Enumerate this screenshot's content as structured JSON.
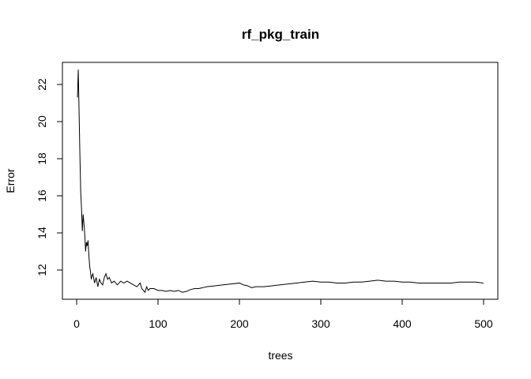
{
  "chart_data": {
    "type": "line",
    "title": "rf_pkg_train",
    "xlabel": "trees",
    "ylabel": "Error",
    "xlim": [
      0,
      500
    ],
    "ylim": [
      10.8,
      22.8
    ],
    "x_ticks": [
      0,
      100,
      200,
      300,
      400,
      500
    ],
    "y_ticks": [
      12,
      14,
      16,
      18,
      20,
      22
    ],
    "grid": false,
    "legend": "none",
    "line_color": "#000000",
    "series": [
      {
        "x": [
          1,
          2,
          3,
          4,
          5,
          6,
          7,
          8,
          9,
          10,
          11,
          12,
          13,
          14,
          15,
          16,
          17,
          18,
          19,
          20,
          22,
          24,
          26,
          28,
          30,
          32,
          34,
          36,
          38,
          40,
          43,
          46,
          50,
          54,
          58,
          62,
          66,
          70,
          74,
          78,
          80,
          82,
          84,
          86,
          88,
          90,
          95,
          100,
          105,
          110,
          115,
          120,
          125,
          130,
          135,
          140,
          145,
          150,
          155,
          160,
          170,
          180,
          190,
          200,
          205,
          210,
          215,
          220,
          230,
          240,
          250,
          260,
          270,
          280,
          290,
          300,
          310,
          320,
          330,
          340,
          350,
          360,
          370,
          380,
          390,
          400,
          410,
          420,
          430,
          440,
          450,
          460,
          470,
          480,
          490,
          500
        ],
        "values": [
          21.3,
          22.8,
          20.5,
          18.2,
          16.2,
          15.3,
          14.1,
          15.0,
          14.5,
          13.9,
          13.0,
          13.5,
          13.3,
          13.6,
          12.8,
          12.2,
          11.9,
          11.5,
          11.7,
          11.8,
          11.3,
          11.6,
          11.1,
          11.5,
          11.3,
          11.2,
          11.6,
          11.8,
          11.5,
          11.6,
          11.3,
          11.4,
          11.2,
          11.4,
          11.3,
          11.4,
          11.3,
          11.2,
          11.1,
          11.3,
          11.0,
          10.9,
          10.8,
          11.1,
          10.9,
          11.0,
          11.0,
          10.9,
          10.9,
          10.85,
          10.9,
          10.85,
          10.9,
          10.8,
          10.85,
          10.95,
          11.0,
          11.0,
          11.05,
          11.1,
          11.15,
          11.2,
          11.25,
          11.3,
          11.2,
          11.15,
          11.05,
          11.1,
          11.1,
          11.15,
          11.2,
          11.25,
          11.3,
          11.35,
          11.4,
          11.35,
          11.35,
          11.3,
          11.3,
          11.35,
          11.35,
          11.4,
          11.45,
          11.4,
          11.4,
          11.35,
          11.35,
          11.3,
          11.3,
          11.3,
          11.3,
          11.3,
          11.35,
          11.35,
          11.35,
          11.3
        ]
      }
    ]
  }
}
